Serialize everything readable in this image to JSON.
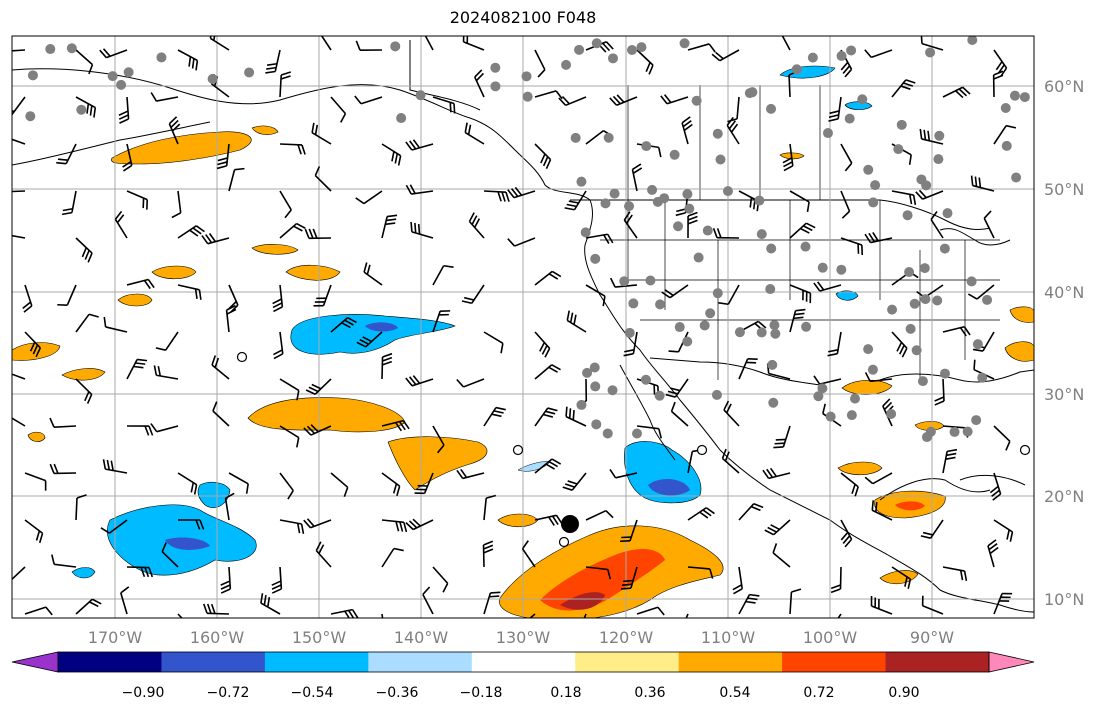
{
  "title": "2024082100 F048",
  "axes": {
    "lon_labels": [
      "170°W",
      "160°W",
      "150°W",
      "140°W",
      "130°W",
      "120°W",
      "110°W",
      "100°W",
      "90°W"
    ],
    "lat_labels": [
      "60°N",
      "50°N",
      "40°N",
      "30°N",
      "20°N",
      "10°N"
    ]
  },
  "colorbar": {
    "colors": [
      "#9933cc",
      "#000080",
      "#3355cc",
      "#00bbff",
      "#aaddff",
      "#ffffff",
      "#ffee88",
      "#ffaa00",
      "#ff4400",
      "#aa2222",
      "#ff88bb"
    ],
    "tick_labels": [
      "−0.90",
      "−0.72",
      "−0.54",
      "−0.36",
      "−0.18",
      "0.18",
      "0.36",
      "0.54",
      "0.72",
      "0.90"
    ]
  },
  "palette": {
    "land_line": "#000000",
    "grid": "#a9a9a9",
    "station_fill": "#808080"
  }
}
